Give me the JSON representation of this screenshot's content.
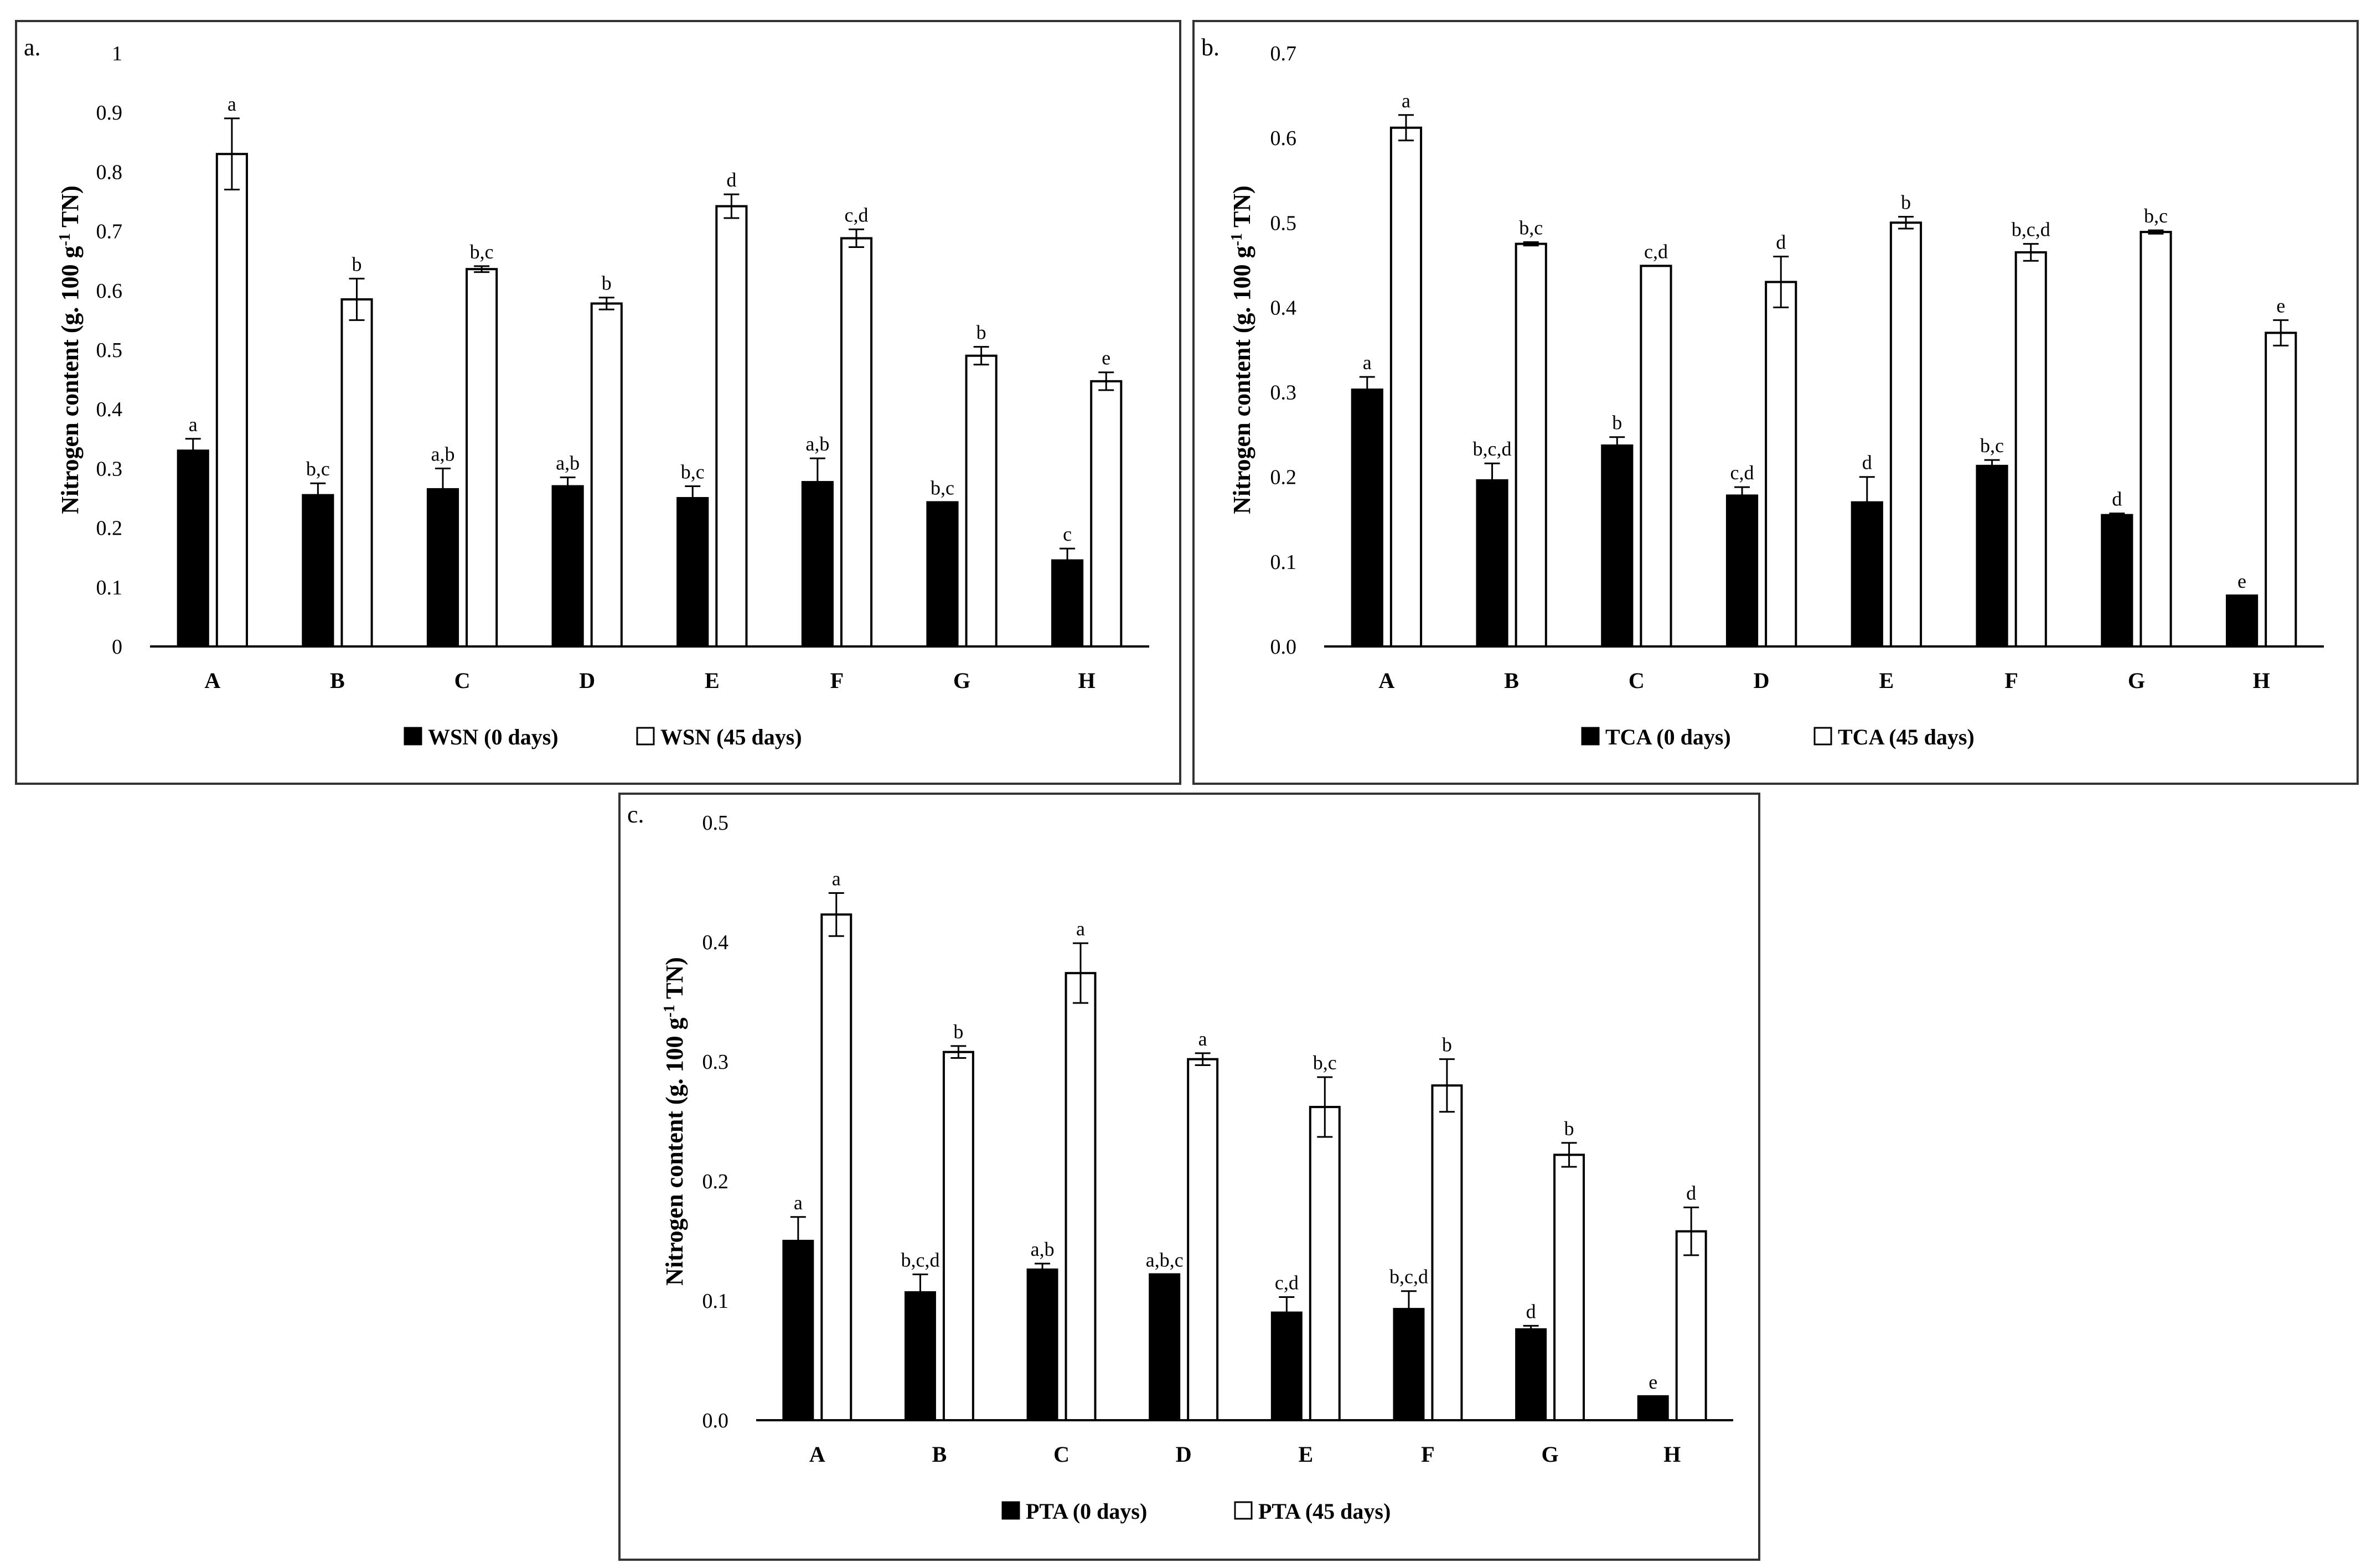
{
  "colors": {
    "series0": "#000000",
    "series1": "#ffffff",
    "stroke": "#000000"
  },
  "chart_data": [
    {
      "type": "bar",
      "panel_label": "a.",
      "ylabel": "Nitrogen content (g. 100 g",
      "ylabel_sup": "-1",
      "ylabel_end": " TN)",
      "categories": [
        "A",
        "B",
        "C",
        "D",
        "E",
        "F",
        "G",
        "H"
      ],
      "ylim": [
        0,
        1
      ],
      "yticks": [
        0,
        0.1,
        0.2,
        0.3,
        0.4,
        0.5,
        0.6,
        0.7,
        0.8,
        0.9,
        1
      ],
      "ytick_labels": [
        "0",
        "0.1",
        "0.2",
        "0.3",
        "0.4",
        "0.5",
        "0.6",
        "0.7",
        "0.8",
        "0.9",
        "1"
      ],
      "series": [
        {
          "name": "WSN (0 days)",
          "values": [
            0.33,
            0.255,
            0.265,
            0.27,
            0.25,
            0.277,
            0.243,
            0.145
          ],
          "errors": [
            0.02,
            0.02,
            0.035,
            0.015,
            0.02,
            0.04,
            0.0,
            0.02
          ],
          "letters": [
            "a",
            "b,c",
            "a,b",
            "a,b",
            "b,c",
            "a,b",
            "b,c",
            "c"
          ]
        },
        {
          "name": "WSN (45 days)",
          "values": [
            0.83,
            0.585,
            0.636,
            0.578,
            0.742,
            0.688,
            0.49,
            0.447
          ],
          "errors": [
            0.06,
            0.035,
            0.005,
            0.01,
            0.02,
            0.015,
            0.015,
            0.015
          ],
          "letters": [
            "a",
            "b",
            "b,c",
            "b",
            "d",
            "c,d",
            "b",
            "e"
          ]
        }
      ]
    },
    {
      "type": "bar",
      "panel_label": "b.",
      "ylabel": "Nitrogen content (g. 100 g",
      "ylabel_sup": "-1",
      "ylabel_end": " TN)",
      "categories": [
        "A",
        "B",
        "C",
        "D",
        "E",
        "F",
        "G",
        "H"
      ],
      "ylim": [
        0,
        0.7
      ],
      "yticks": [
        0,
        0.1,
        0.2,
        0.3,
        0.4,
        0.5,
        0.6,
        0.7
      ],
      "ytick_labels": [
        "0.0",
        "0.1",
        "0.2",
        "0.3",
        "0.4",
        "0.5",
        "0.6",
        "0.7"
      ],
      "series": [
        {
          "name": "TCA (0 days)",
          "values": [
            0.303,
            0.196,
            0.237,
            0.178,
            0.17,
            0.213,
            0.155,
            0.06
          ],
          "errors": [
            0.015,
            0.02,
            0.01,
            0.01,
            0.03,
            0.007,
            0.002,
            0.0
          ],
          "letters": [
            "a",
            "b,c,d",
            "b",
            "c,d",
            "d",
            "b,c",
            "d",
            "e"
          ]
        },
        {
          "name": "TCA (45 days)",
          "values": [
            0.612,
            0.475,
            0.449,
            0.43,
            0.5,
            0.465,
            0.489,
            0.37
          ],
          "errors": [
            0.015,
            0.002,
            0.0,
            0.03,
            0.007,
            0.01,
            0.002,
            0.015
          ],
          "letters": [
            "a",
            "b,c",
            "c,d",
            "d",
            "b",
            "b,c,d",
            "b,c",
            "e"
          ]
        }
      ]
    },
    {
      "type": "bar",
      "panel_label": "c.",
      "ylabel": "Nitrogen content (g. 100 g",
      "ylabel_sup": "-1",
      "ylabel_end": " TN)",
      "categories": [
        "A",
        "B",
        "C",
        "D",
        "E",
        "F",
        "G",
        "H"
      ],
      "ylim": [
        0,
        0.5
      ],
      "yticks": [
        0,
        0.1,
        0.2,
        0.3,
        0.4,
        0.5
      ],
      "ytick_labels": [
        "0.0",
        "0.1",
        "0.2",
        "0.3",
        "0.4",
        "0.5"
      ],
      "series": [
        {
          "name": "PTA (0 days)",
          "values": [
            0.15,
            0.107,
            0.126,
            0.122,
            0.09,
            0.093,
            0.076,
            0.02
          ],
          "errors": [
            0.02,
            0.015,
            0.005,
            0.0,
            0.013,
            0.015,
            0.003,
            0.0
          ],
          "letters": [
            "a",
            "b,c,d",
            "a,b",
            "a,b,c",
            "c,d",
            "b,c,d",
            "d",
            "e"
          ]
        },
        {
          "name": "PTA (45 days)",
          "values": [
            0.423,
            0.308,
            0.374,
            0.302,
            0.262,
            0.28,
            0.222,
            0.158
          ],
          "errors": [
            0.018,
            0.005,
            0.025,
            0.005,
            0.025,
            0.022,
            0.01,
            0.02
          ],
          "letters": [
            "a",
            "b",
            "a",
            "a",
            "b,c",
            "b",
            "b",
            "d"
          ]
        }
      ]
    }
  ]
}
